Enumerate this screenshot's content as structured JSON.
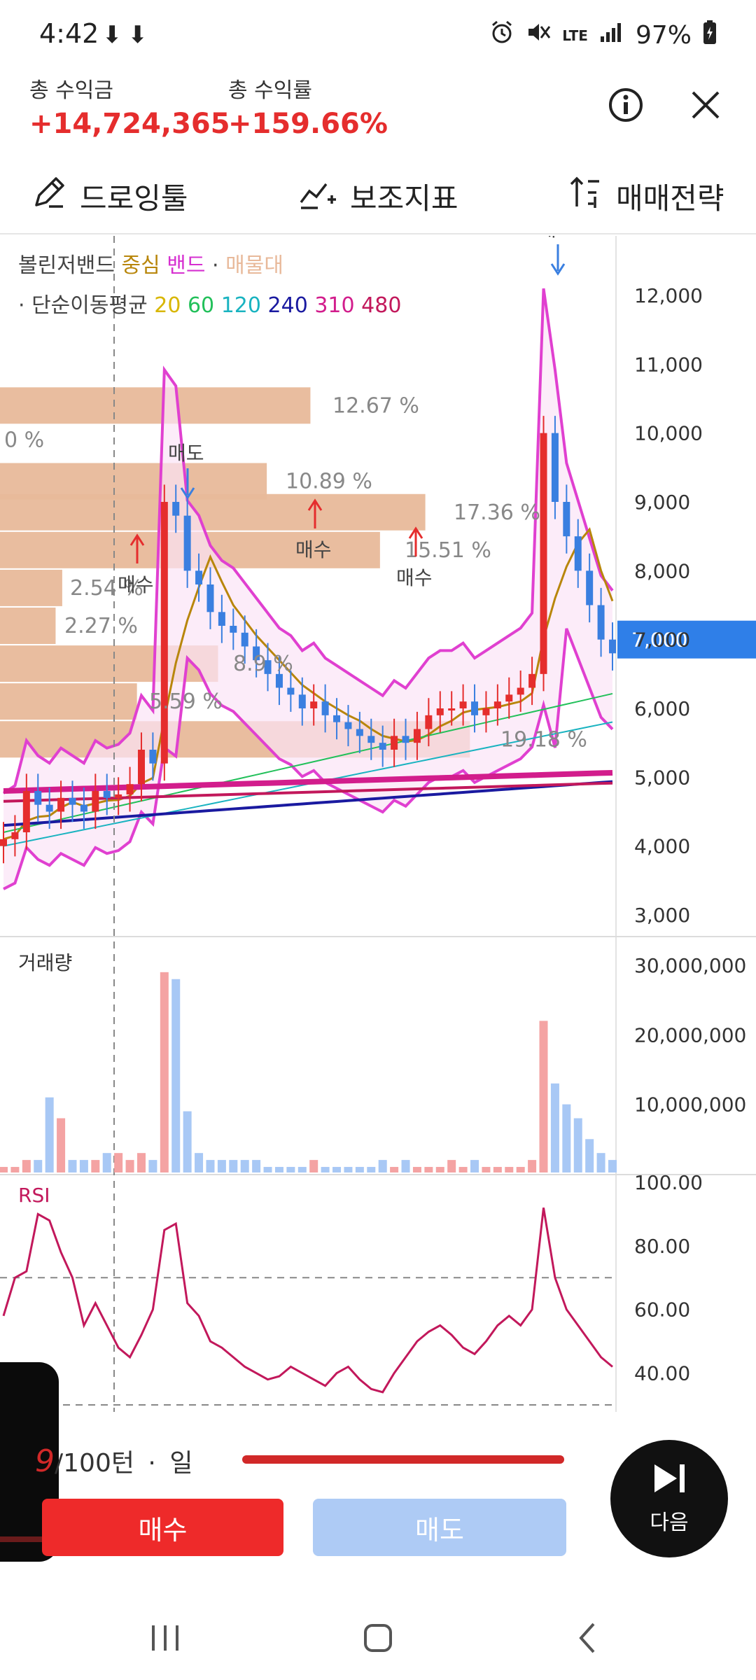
{
  "status": {
    "time": "4:42",
    "download_icons": "⬇⬇",
    "battery": "97%",
    "network": "LTE"
  },
  "header": {
    "profit_label": "총 수익금",
    "profit_value": "+14,724,365",
    "rate_label": "총 수익률",
    "rate_value": "+159.66%"
  },
  "toolbar": {
    "drawing": "드로잉툴",
    "indicator": "보조지표",
    "strategy": "매매전략"
  },
  "legend": {
    "bollinger": "볼린저밴드",
    "center": "중심",
    "band": "밴드",
    "dot": "·",
    "volume_profile": "매물대",
    "sma_prefix": "· 단순이동평균",
    "sma_20": "20",
    "sma_60": "60",
    "sma_120": "120",
    "sma_240": "240",
    "sma_310": "310",
    "sma_480": "480"
  },
  "price_axis": [
    "12,000",
    "11,000",
    "10,000",
    "9,000",
    "8,000",
    "7,000",
    "6,000",
    "5,000",
    "4,000",
    "3,000"
  ],
  "current_price": "7,000",
  "volume_profile_labels": [
    "12.67 %",
    "0 %",
    "10.89 %",
    "17.36 %",
    "15.51 %",
    "2.54 %",
    "2.27 %",
    "8.9 %",
    "5.59 %",
    "19.18 %",
    "%",
    ".59 %"
  ],
  "trade_labels": {
    "sell": "매도",
    "buy": "매수"
  },
  "volume": {
    "title": "거래량",
    "axis": [
      "30,000,000",
      "20,000,000",
      "10,000,000"
    ]
  },
  "rsi": {
    "title": "RSI",
    "axis": [
      "100.00",
      "80.00",
      "60.00",
      "40.00"
    ]
  },
  "controls": {
    "turn_current": "9",
    "turn_total": "/100턴",
    "dot": "·",
    "period": "일",
    "buy": "매수",
    "sell": "매도",
    "next": "다음"
  },
  "colors": {
    "up": "#e52d2d",
    "down": "#3a7fe0",
    "band": "#e040d0",
    "center": "#b8860b",
    "profile": "#e8b99a",
    "current_price_bg": "#2f7fe8"
  },
  "chart_data": [
    {
      "type": "candlestick",
      "title": "볼린저밴드 중심 밴드 · 매물대",
      "ylim": [
        3000,
        12500
      ],
      "y_ticks": [
        12000,
        11000,
        10000,
        9000,
        8000,
        7000,
        6000,
        5000,
        4000,
        3000
      ],
      "close": [
        4100,
        4200,
        4800,
        4600,
        4500,
        4700,
        4600,
        4500,
        4800,
        4700,
        4750,
        4900,
        5400,
        5200,
        9000,
        8800,
        8000,
        7800,
        7400,
        7200,
        7100,
        6900,
        6700,
        6500,
        6300,
        6200,
        6000,
        6100,
        5900,
        5800,
        5700,
        5600,
        5500,
        5400,
        5600,
        5500,
        5700,
        5900,
        6000,
        6000,
        6100,
        5900,
        6000,
        6100,
        6200,
        6300,
        6500,
        10000,
        9000,
        8500,
        8000,
        7500,
        7000,
        6800
      ],
      "volume_profile_percent": [
        12.67,
        0,
        10.89,
        17.36,
        15.51,
        2.54,
        2.27,
        8.9,
        5.59,
        19.18
      ],
      "current_price": 7000
    },
    {
      "type": "bar",
      "title": "거래량",
      "ylim": [
        0,
        32000000
      ],
      "y_ticks": [
        30000000,
        20000000,
        10000000
      ],
      "values": [
        1,
        1,
        2,
        2,
        11,
        8,
        2,
        2,
        2,
        3,
        3,
        2,
        3,
        2,
        29,
        28,
        9,
        3,
        2,
        2,
        2,
        2,
        2,
        1,
        1,
        1,
        1,
        2,
        1,
        1,
        1,
        1,
        1,
        2,
        1,
        2,
        1,
        1,
        1,
        2,
        1,
        2,
        1,
        1,
        1,
        1,
        2,
        22,
        13,
        10,
        8,
        5,
        3,
        2
      ],
      "units": "millions"
    },
    {
      "type": "line",
      "title": "RSI",
      "ylim": [
        30,
        100
      ],
      "y_ticks": [
        100,
        80,
        60,
        40
      ],
      "values": [
        58,
        70,
        72,
        90,
        88,
        78,
        70,
        55,
        62,
        55,
        48,
        45,
        52,
        60,
        85,
        87,
        62,
        58,
        50,
        48,
        45,
        42,
        40,
        38,
        39,
        42,
        40,
        38,
        36,
        40,
        42,
        38,
        35,
        34,
        40,
        45,
        50,
        53,
        55,
        52,
        48,
        46,
        50,
        55,
        58,
        55,
        60,
        92,
        70,
        60,
        55,
        50,
        45,
        42
      ]
    }
  ]
}
